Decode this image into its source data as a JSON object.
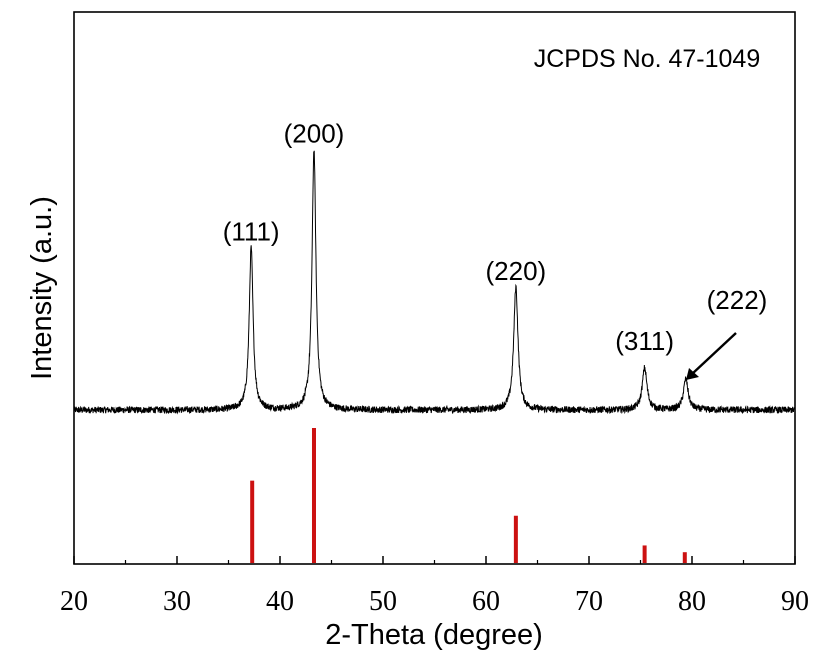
{
  "chart_data": {
    "type": "line",
    "xlabel": "2-Theta (degree)",
    "ylabel": "Intensity (a.u.)",
    "xlim": [
      20,
      90
    ],
    "x_ticks": [
      20,
      30,
      40,
      50,
      60,
      70,
      80,
      90
    ],
    "grid": false,
    "legend": "none",
    "annotation": "JCPDS No. 47-1049",
    "series": [
      {
        "style": "line",
        "color": "#000000",
        "peaks": [
          {
            "x": 37.2,
            "label": "(111)",
            "height": 0.58,
            "width": 0.45
          },
          {
            "x": 43.3,
            "label": "(200)",
            "height": 0.93,
            "width": 0.45
          },
          {
            "x": 62.9,
            "label": "(220)",
            "height": 0.44,
            "width": 0.5
          },
          {
            "x": 75.4,
            "label": "(311)",
            "height": 0.15,
            "width": 0.55
          },
          {
            "x": 79.4,
            "label": "(222)",
            "height": 0.11,
            "width": 0.55
          }
        ]
      },
      {
        "style": "reference-sticks",
        "color": "#cc1111",
        "sticks": [
          {
            "x": 37.3,
            "intensity": 61
          },
          {
            "x": 43.3,
            "intensity": 100
          },
          {
            "x": 62.9,
            "intensity": 35
          },
          {
            "x": 75.4,
            "intensity": 13
          },
          {
            "x": 79.3,
            "intensity": 8
          }
        ]
      }
    ],
    "arrow_annotation_label": "(222)"
  }
}
